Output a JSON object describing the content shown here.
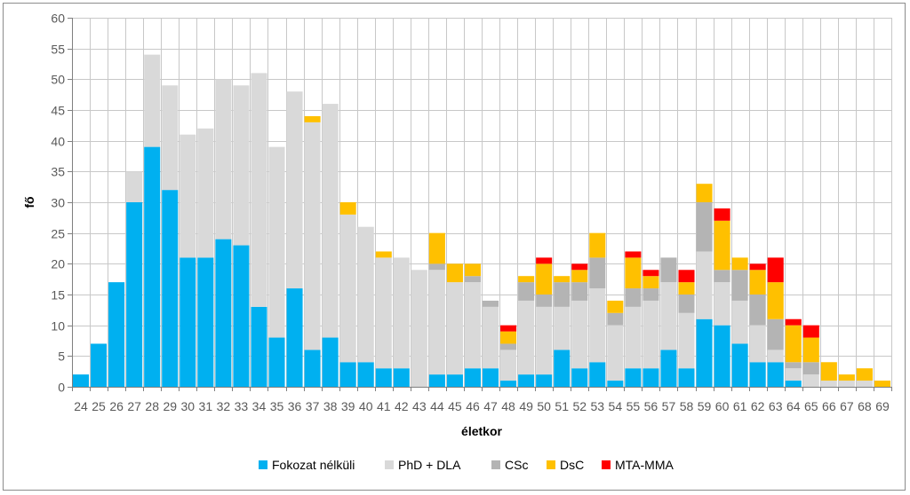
{
  "chart_data": {
    "type": "bar",
    "stacked": true,
    "xlabel": "életkor",
    "ylabel": "fő",
    "ylim": [
      0,
      60
    ],
    "yticks": [
      0,
      5,
      10,
      15,
      20,
      25,
      30,
      35,
      40,
      45,
      50,
      55,
      60
    ],
    "grid": true,
    "legend_position": "bottom",
    "categories": [
      "24",
      "25",
      "26",
      "27",
      "28",
      "29",
      "30",
      "31",
      "32",
      "33",
      "34",
      "35",
      "36",
      "37",
      "38",
      "39",
      "40",
      "41",
      "42",
      "43",
      "44",
      "45",
      "46",
      "47",
      "48",
      "49",
      "50",
      "51",
      "52",
      "53",
      "54",
      "55",
      "56",
      "57",
      "58",
      "59",
      "60",
      "61",
      "62",
      "63",
      "64",
      "65",
      "66",
      "67",
      "68",
      "69"
    ],
    "series": [
      {
        "name": "Fokozat nélküli",
        "color": "#00b0f0",
        "values": [
          2,
          7,
          17,
          30,
          39,
          32,
          21,
          21,
          24,
          23,
          13,
          8,
          16,
          6,
          8,
          4,
          4,
          3,
          3,
          0,
          2,
          2,
          3,
          3,
          1,
          2,
          2,
          6,
          3,
          4,
          1,
          3,
          3,
          6,
          3,
          11,
          10,
          7,
          4,
          4,
          1,
          0,
          0,
          0,
          0,
          0
        ]
      },
      {
        "name": "PhD + DLA",
        "color": "#d9d9d9",
        "values": [
          0,
          0,
          0,
          5,
          15,
          17,
          20,
          21,
          26,
          26,
          38,
          31,
          32,
          37,
          38,
          24,
          22,
          18,
          18,
          19,
          17,
          15,
          14,
          10,
          5,
          12,
          11,
          7,
          11,
          12,
          9,
          10,
          11,
          11,
          9,
          11,
          7,
          7,
          6,
          2,
          2,
          2,
          1,
          1,
          1,
          0
        ]
      },
      {
        "name": "CSc",
        "color": "#b4b4b4",
        "values": [
          0,
          0,
          0,
          0,
          0,
          0,
          0,
          0,
          0,
          0,
          0,
          0,
          0,
          0,
          0,
          0,
          0,
          0,
          0,
          0,
          1,
          0,
          1,
          1,
          1,
          3,
          2,
          4,
          3,
          5,
          2,
          3,
          2,
          4,
          3,
          8,
          2,
          5,
          5,
          5,
          1,
          2,
          0,
          0,
          0,
          0
        ]
      },
      {
        "name": "DsC",
        "color": "#ffc000",
        "values": [
          0,
          0,
          0,
          0,
          0,
          0,
          0,
          0,
          0,
          0,
          0,
          0,
          0,
          1,
          0,
          2,
          0,
          1,
          0,
          0,
          5,
          3,
          2,
          0,
          2,
          1,
          5,
          1,
          2,
          4,
          2,
          5,
          2,
          0,
          2,
          3,
          8,
          2,
          4,
          6,
          6,
          4,
          3,
          1,
          2,
          1
        ]
      },
      {
        "name": "MTA-MMA",
        "color": "#ff0000",
        "values": [
          0,
          0,
          0,
          0,
          0,
          0,
          0,
          0,
          0,
          0,
          0,
          0,
          0,
          0,
          0,
          0,
          0,
          0,
          0,
          0,
          0,
          0,
          0,
          0,
          1,
          0,
          1,
          0,
          1,
          0,
          0,
          1,
          1,
          0,
          2,
          0,
          2,
          0,
          1,
          4,
          1,
          2,
          0,
          0,
          0,
          0
        ]
      }
    ]
  }
}
